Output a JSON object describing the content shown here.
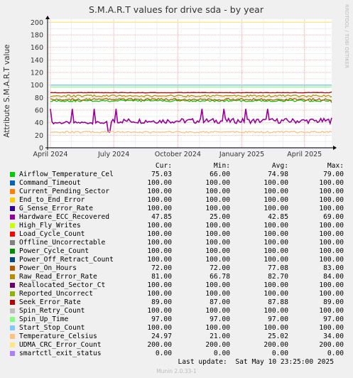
{
  "title": "S.M.A.R.T values for drive sda - by year",
  "watermark": "RRDTOOL / TOBI OETIKER",
  "footer": "Last update:  Sat May 10 23:25:00 2025",
  "version": "Munin 2.0.33-1",
  "chart_data": {
    "type": "line",
    "title": "S.M.A.R.T values for drive sda - by year",
    "ylabel": "Attribute S.M.A.R.T value",
    "xlabel": "",
    "ylim": [
      0,
      205
    ],
    "yticks": [
      0,
      20,
      40,
      60,
      80,
      100,
      120,
      140,
      160,
      180,
      200
    ],
    "xlim": [
      "2024-03-28",
      "2025-05-10"
    ],
    "xticks": [
      {
        "date": "2024-04-01",
        "label": "April 2024"
      },
      {
        "date": "2024-07-01",
        "label": "July 2024"
      },
      {
        "date": "2024-10-01",
        "label": "October 2024"
      },
      {
        "date": "2025-01-01",
        "label": "January 2025"
      },
      {
        "date": "2025-04-01",
        "label": "April 2025"
      }
    ],
    "grid": true,
    "columns": [
      "Cur:",
      "Min:",
      "Avg:",
      "Max:"
    ],
    "series": [
      {
        "name": "Airflow_Temperature_Cel",
        "color": "#00cc00",
        "cur": "75.03",
        "min": "66.00",
        "avg": "74.98",
        "max": "79.00"
      },
      {
        "name": "Command_Timeout",
        "color": "#0066b3",
        "cur": "100.00",
        "min": "100.00",
        "avg": "100.00",
        "max": "100.00"
      },
      {
        "name": "Current_Pending_Sector",
        "color": "#ff8000",
        "cur": "100.00",
        "min": "100.00",
        "avg": "100.00",
        "max": "100.00"
      },
      {
        "name": "End_to_End_Error",
        "color": "#ffcc00",
        "cur": "100.00",
        "min": "100.00",
        "avg": "100.00",
        "max": "100.00"
      },
      {
        "name": "G_Sense_Error_Rate",
        "color": "#330099",
        "cur": "100.00",
        "min": "100.00",
        "avg": "100.00",
        "max": "100.00"
      },
      {
        "name": "Hardware_ECC_Recovered",
        "color": "#990099",
        "cur": "47.85",
        "min": "25.00",
        "avg": "42.85",
        "max": "69.00"
      },
      {
        "name": "High_Fly_Writes",
        "color": "#ccff00",
        "cur": "100.00",
        "min": "100.00",
        "avg": "100.00",
        "max": "100.00"
      },
      {
        "name": "Load_Cycle_Count",
        "color": "#ff0000",
        "cur": "100.00",
        "min": "100.00",
        "avg": "100.00",
        "max": "100.00"
      },
      {
        "name": "Offline_Uncorrectable",
        "color": "#808080",
        "cur": "100.00",
        "min": "100.00",
        "avg": "100.00",
        "max": "100.00"
      },
      {
        "name": "Power_Cycle_Count",
        "color": "#008f00",
        "cur": "100.00",
        "min": "100.00",
        "avg": "100.00",
        "max": "100.00"
      },
      {
        "name": "Power_Off_Retract_Count",
        "color": "#00487d",
        "cur": "100.00",
        "min": "100.00",
        "avg": "100.00",
        "max": "100.00"
      },
      {
        "name": "Power_On_Hours",
        "color": "#b35a00",
        "cur": "72.00",
        "min": "72.00",
        "avg": "77.08",
        "max": "83.00"
      },
      {
        "name": "Raw_Read_Error_Rate",
        "color": "#b38f00",
        "cur": "81.00",
        "min": "66.78",
        "avg": "82.70",
        "max": "84.00"
      },
      {
        "name": "Reallocated_Sector_Ct",
        "color": "#6b006b",
        "cur": "100.00",
        "min": "100.00",
        "avg": "100.00",
        "max": "100.00"
      },
      {
        "name": "Reported_Uncorrect",
        "color": "#8fb300",
        "cur": "100.00",
        "min": "100.00",
        "avg": "100.00",
        "max": "100.00"
      },
      {
        "name": "Seek_Error_Rate",
        "color": "#b30000",
        "cur": "89.00",
        "min": "87.00",
        "avg": "87.88",
        "max": "89.00"
      },
      {
        "name": "Spin_Retry_Count",
        "color": "#bebebe",
        "cur": "100.00",
        "min": "100.00",
        "avg": "100.00",
        "max": "100.00"
      },
      {
        "name": "Spin_Up_Time",
        "color": "#80ff80",
        "cur": "97.00",
        "min": "97.00",
        "avg": "97.00",
        "max": "97.00"
      },
      {
        "name": "Start_Stop_Count",
        "color": "#80c9ff",
        "cur": "100.00",
        "min": "100.00",
        "avg": "100.00",
        "max": "100.00"
      },
      {
        "name": "Temperature_Celsius",
        "color": "#ffc080",
        "cur": "24.97",
        "min": "21.00",
        "avg": "25.02",
        "max": "34.00"
      },
      {
        "name": "UDMA_CRC_Error_Count",
        "color": "#ffe680",
        "cur": "200.00",
        "min": "200.00",
        "avg": "200.00",
        "max": "200.00"
      },
      {
        "name": "smartctl_exit_status",
        "color": "#aa80ff",
        "cur": "0.00",
        "min": "0.00",
        "avg": "0.00",
        "max": "0.00"
      }
    ]
  }
}
